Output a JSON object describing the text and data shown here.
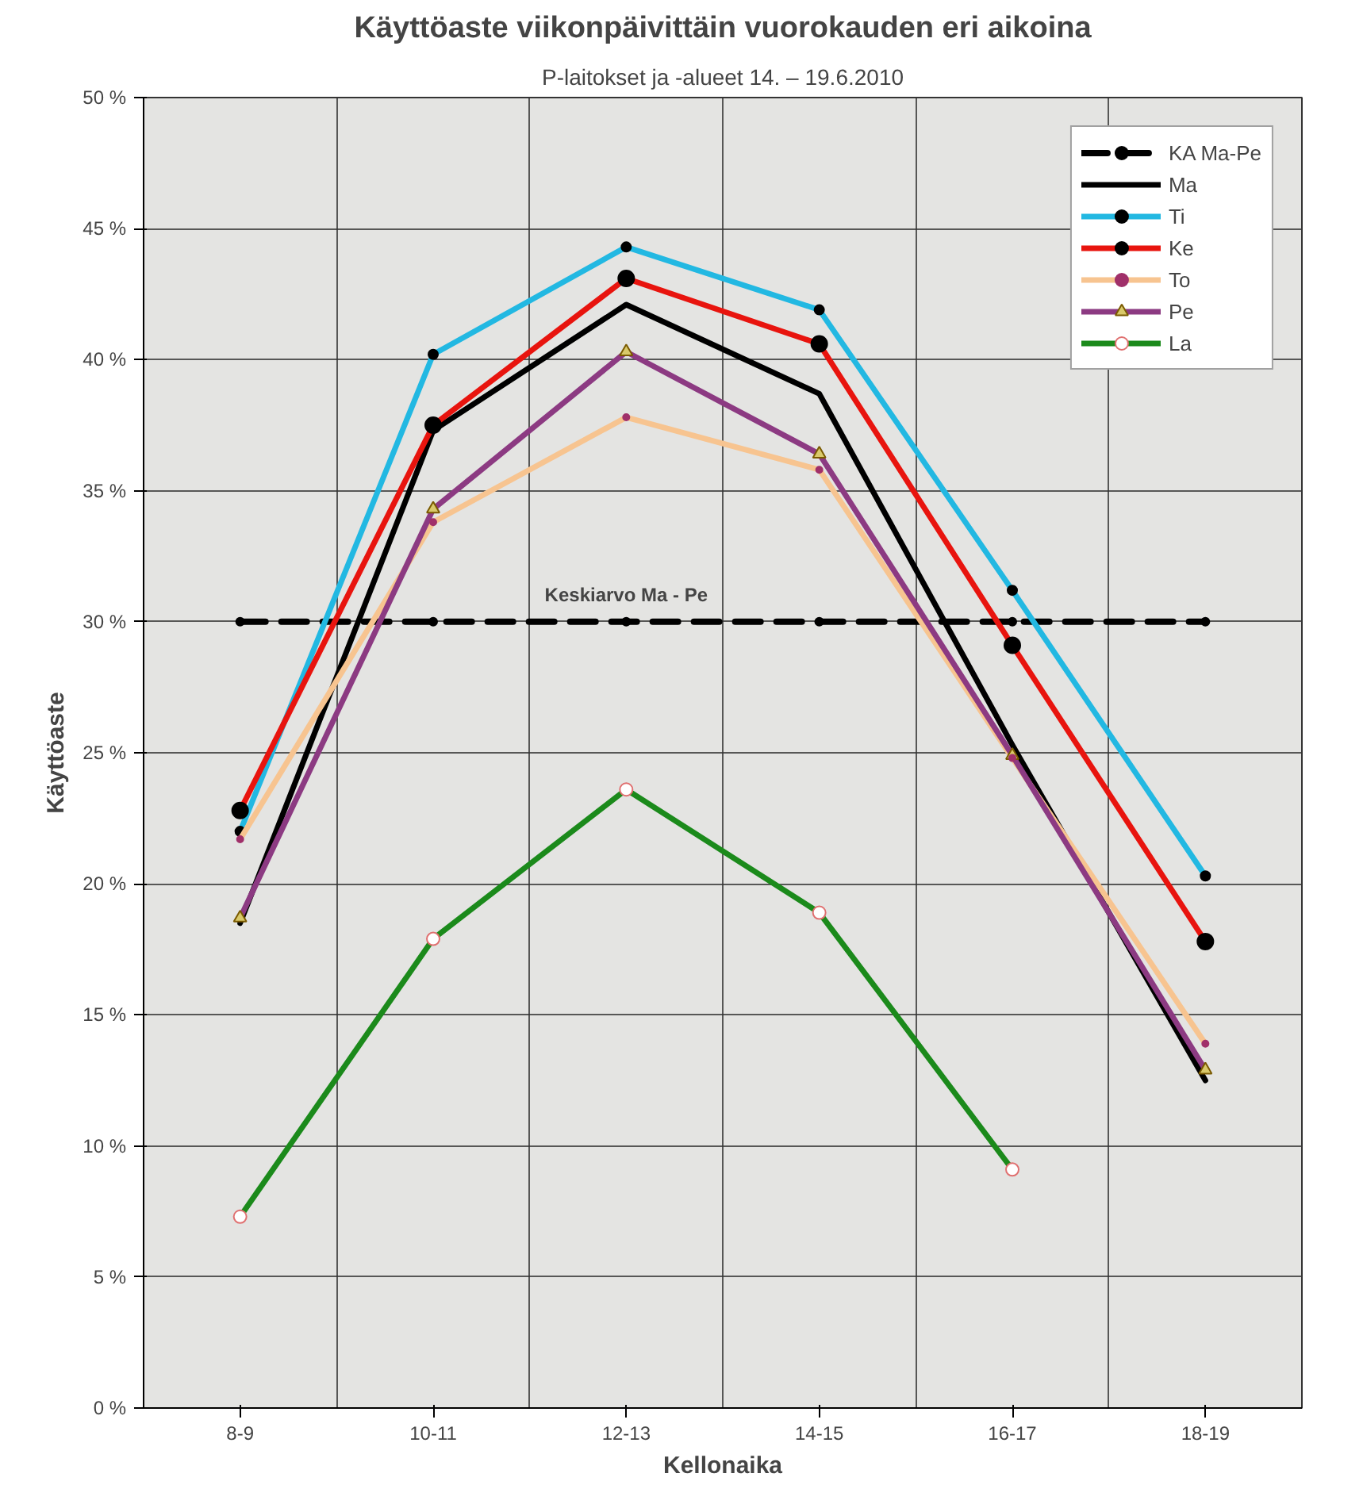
{
  "chart_data": {
    "type": "line",
    "title": "Käyttöaste viikonpäivittäin vuorokauden eri aikoina",
    "subtitle": "P-laitokset ja -alueet 14. – 19.6.2010",
    "xlabel": "Kellonaika",
    "ylabel": "Käyttöaste",
    "categories": [
      "8-9",
      "10-11",
      "12-13",
      "14-15",
      "16-17",
      "18-19"
    ],
    "series": [
      {
        "name": "KA Ma-Pe",
        "color": "#000000",
        "line_style": "dashed",
        "marker": "circle",
        "values": [
          30,
          30,
          30,
          30,
          30,
          30
        ]
      },
      {
        "name": "Ma",
        "color": "#000000",
        "marker": "none",
        "values": [
          18.5,
          37.3,
          42.1,
          38.7,
          25.3,
          12.5
        ]
      },
      {
        "name": "Ti",
        "color": "#22b8e2",
        "marker": "circle",
        "values": [
          22.0,
          40.2,
          44.3,
          41.9,
          31.2,
          20.3
        ]
      },
      {
        "name": "Ke",
        "color": "#e8140e",
        "marker": "circle",
        "values": [
          22.8,
          37.5,
          43.1,
          40.6,
          29.1,
          17.8
        ]
      },
      {
        "name": "To",
        "color": "#f7c490",
        "marker": "circle",
        "values": [
          21.7,
          33.8,
          37.8,
          35.8,
          24.8,
          13.9
        ]
      },
      {
        "name": "Pe",
        "color": "#8c3a82",
        "marker": "triangle",
        "values": [
          18.7,
          34.3,
          40.3,
          36.4,
          24.9,
          12.9
        ]
      },
      {
        "name": "La",
        "color": "#1b8a1b",
        "marker": "circle",
        "values": [
          7.3,
          17.9,
          23.6,
          18.9,
          9.1,
          null
        ]
      }
    ],
    "ylim": [
      0,
      50
    ],
    "yticks": [
      {
        "value": 0,
        "label": "0 %"
      },
      {
        "value": 5,
        "label": "5 %"
      },
      {
        "value": 10,
        "label": "10 %"
      },
      {
        "value": 15,
        "label": "15 %"
      },
      {
        "value": 20,
        "label": "20 %"
      },
      {
        "value": 25,
        "label": "25 %"
      },
      {
        "value": 30,
        "label": "30 %"
      },
      {
        "value": 35,
        "label": "35 %"
      },
      {
        "value": 40,
        "label": "40 %"
      },
      {
        "value": 45,
        "label": "45 %"
      },
      {
        "value": 50,
        "label": "50 %"
      }
    ],
    "annotations": [
      {
        "text": "Keskiarvo Ma - Pe",
        "x": "12-13",
        "y": 30
      }
    ],
    "grid": true,
    "legend": "top right",
    "line_style": "solid"
  }
}
